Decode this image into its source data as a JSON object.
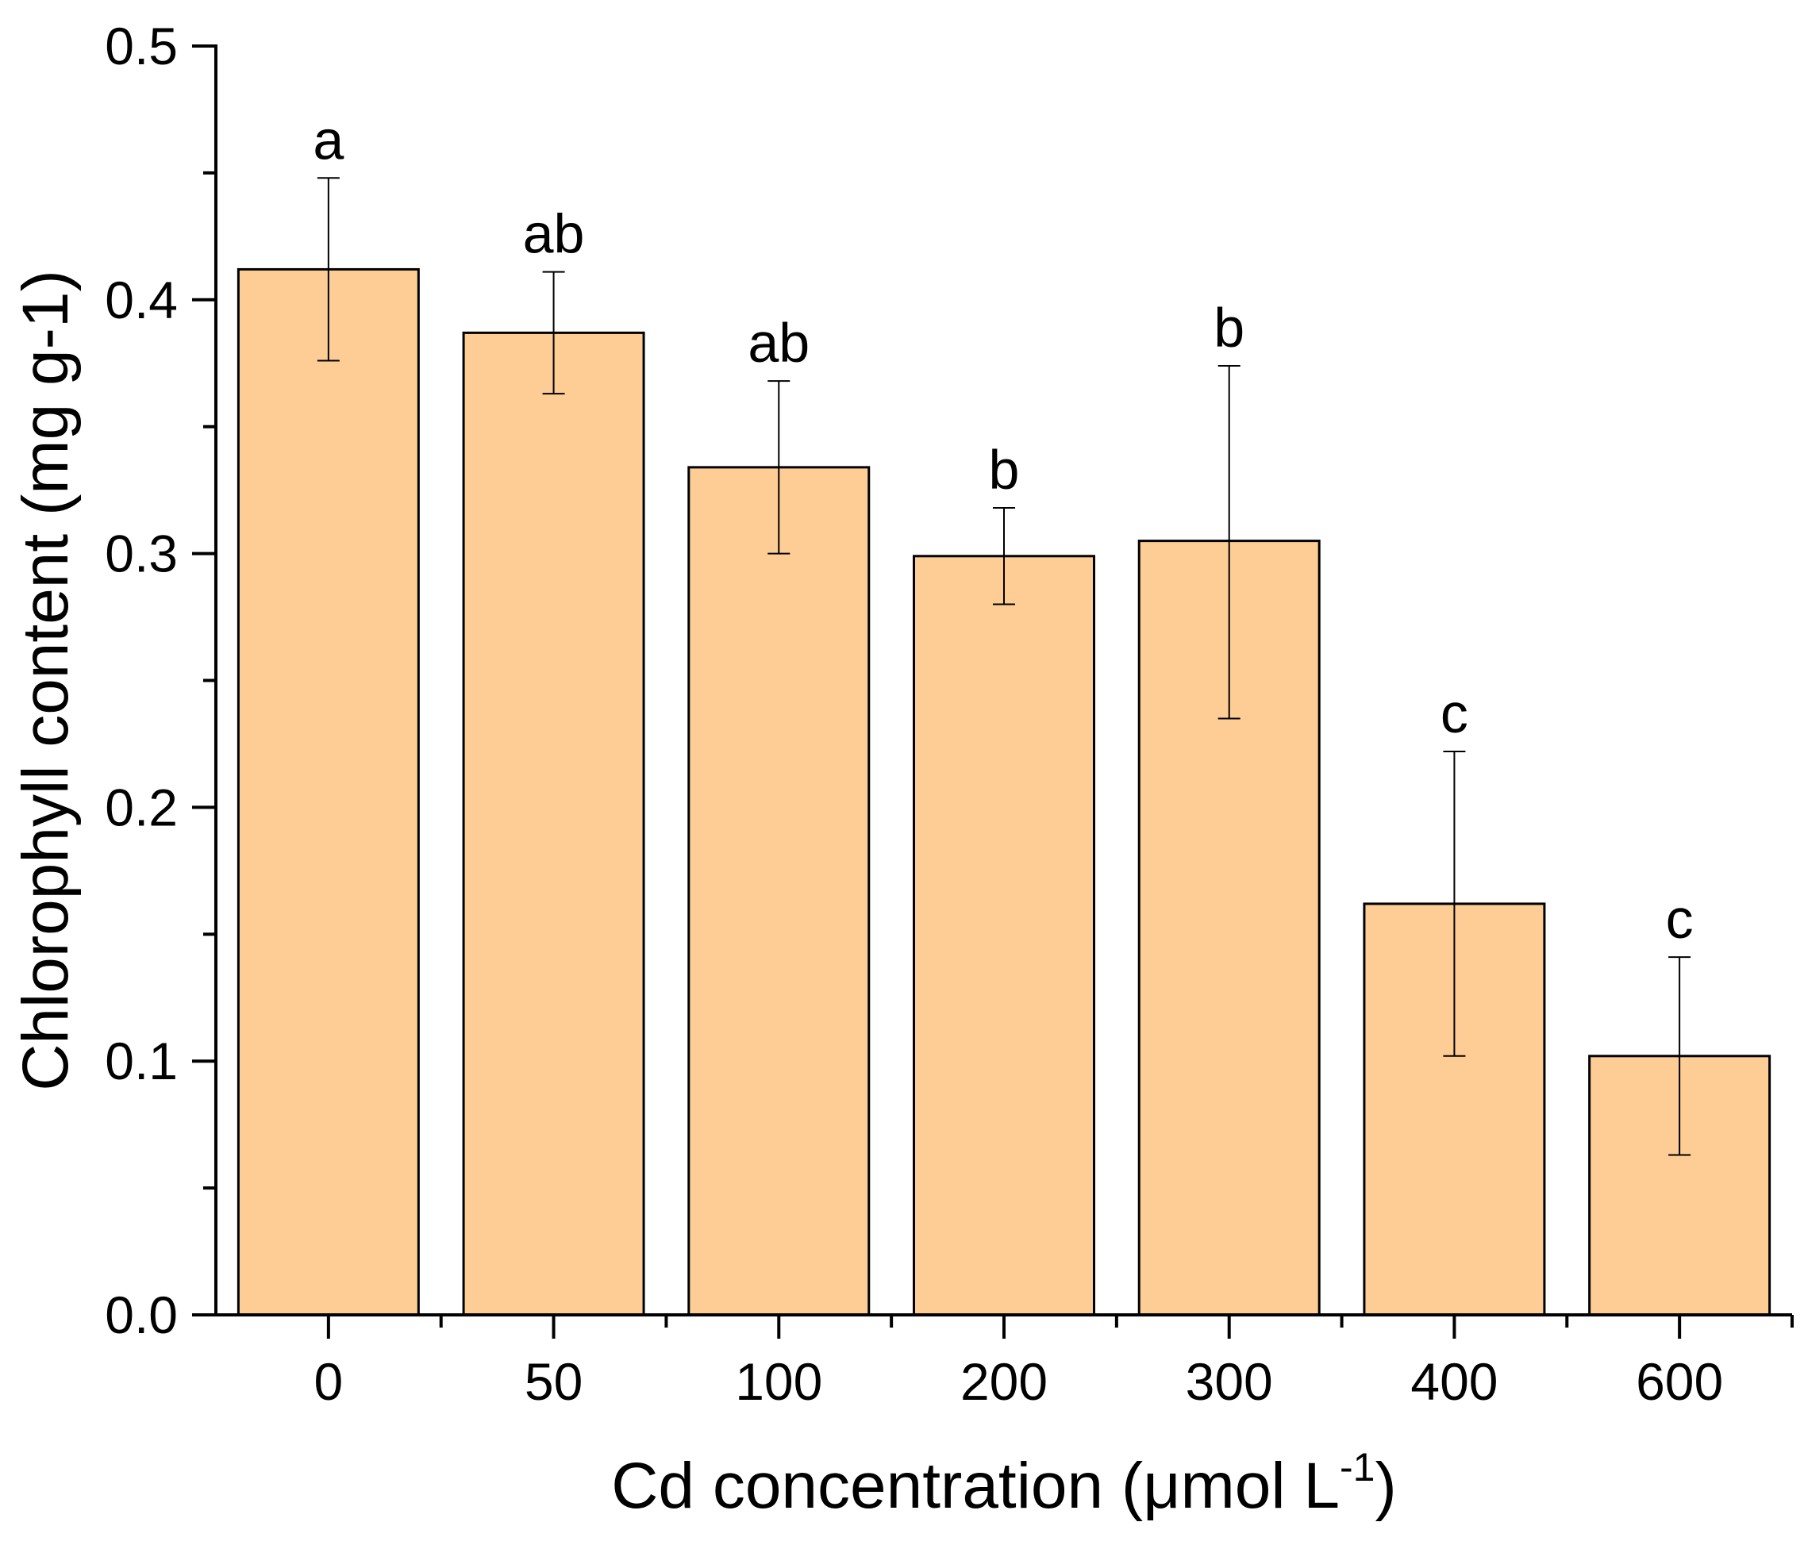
{
  "chart_data": {
    "type": "bar",
    "title": "",
    "xlabel": "Cd concentration (μmol L",
    "xlabel_superscript": "-1",
    "xlabel_close": ")",
    "ylabel": "Chlorophyll content (mg g-1)",
    "categories": [
      "0",
      "50",
      "100",
      "200",
      "300",
      "400",
      "600"
    ],
    "values": [
      0.412,
      0.387,
      0.334,
      0.299,
      0.305,
      0.162,
      0.102
    ],
    "error_low": [
      0.376,
      0.363,
      0.3,
      0.28,
      0.235,
      0.102,
      0.063
    ],
    "error_high": [
      0.448,
      0.411,
      0.368,
      0.318,
      0.374,
      0.222,
      0.141
    ],
    "significance_labels": [
      "a",
      "ab",
      "ab",
      "b",
      "b",
      "c",
      "c"
    ],
    "ylim": [
      0.0,
      0.5
    ],
    "yticks": [
      0.0,
      0.1,
      0.2,
      0.3,
      0.4,
      0.5
    ],
    "ytick_labels": [
      "0.0",
      "0.1",
      "0.2",
      "0.3",
      "0.4",
      "0.5"
    ],
    "grid": false,
    "legend": "none",
    "colors": {
      "bar_fill": "#FDCD95",
      "bar_stroke": "#000000",
      "axis": "#000000",
      "error_bar": "#000000"
    }
  }
}
